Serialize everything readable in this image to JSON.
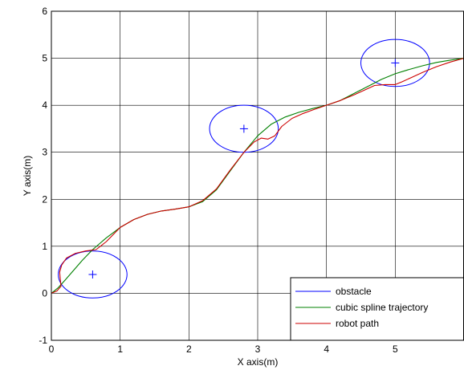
{
  "chart_data": {
    "type": "line",
    "title": "",
    "xlabel": "X axis(m)",
    "ylabel": "Y axis(m)",
    "xlim": [
      0,
      6
    ],
    "ylim": [
      -1,
      6
    ],
    "xticks": [
      0,
      1,
      2,
      3,
      4,
      5
    ],
    "yticks": [
      -1,
      0,
      1,
      2,
      3,
      4,
      5,
      6
    ],
    "grid": true,
    "legend_position": "bottom-right",
    "obstacles": [
      {
        "cx": 0.6,
        "cy": 0.4,
        "rx": 0.5,
        "ry": 0.5
      },
      {
        "cx": 2.8,
        "cy": 3.5,
        "rx": 0.5,
        "ry": 0.5
      },
      {
        "cx": 5.0,
        "cy": 4.9,
        "rx": 0.5,
        "ry": 0.5
      }
    ],
    "series": [
      {
        "name": "obstacle",
        "color": "#0000ff",
        "kind": "obstacle"
      },
      {
        "name": "cubic spline trajectory",
        "color": "#008000",
        "x": [
          0,
          0.1,
          0.2,
          0.3,
          0.45,
          0.6,
          0.8,
          1.0,
          1.2,
          1.4,
          1.6,
          1.8,
          2.0,
          2.2,
          2.4,
          2.6,
          2.8,
          3.0,
          3.2,
          3.4,
          3.6,
          3.8,
          4.0,
          4.2,
          4.4,
          4.6,
          4.8,
          5.0,
          5.2,
          5.4,
          5.6,
          5.8,
          6.0
        ],
        "y": [
          0,
          0.12,
          0.28,
          0.45,
          0.7,
          0.93,
          1.18,
          1.4,
          1.57,
          1.68,
          1.75,
          1.79,
          1.84,
          1.95,
          2.2,
          2.6,
          3.0,
          3.35,
          3.6,
          3.75,
          3.85,
          3.93,
          4.0,
          4.1,
          4.25,
          4.4,
          4.55,
          4.67,
          4.76,
          4.84,
          4.91,
          4.96,
          5.0
        ]
      },
      {
        "name": "robot path",
        "color": "#cc0000",
        "x": [
          0,
          0.08,
          0.14,
          0.13,
          0.12,
          0.15,
          0.22,
          0.35,
          0.5,
          0.65,
          0.8,
          1.0,
          1.2,
          1.4,
          1.6,
          1.8,
          2.0,
          2.2,
          2.4,
          2.6,
          2.8,
          2.95,
          3.05,
          3.15,
          3.25,
          3.35,
          3.5,
          3.65,
          3.8,
          4.0,
          4.2,
          4.4,
          4.55,
          4.7,
          4.85,
          5.0,
          5.1,
          5.25,
          5.4,
          5.6,
          5.8,
          6.0
        ],
        "y": [
          0,
          0.05,
          0.15,
          0.3,
          0.45,
          0.6,
          0.75,
          0.85,
          0.9,
          0.93,
          1.1,
          1.4,
          1.57,
          1.68,
          1.75,
          1.79,
          1.84,
          1.97,
          2.22,
          2.62,
          3.0,
          3.22,
          3.3,
          3.28,
          3.35,
          3.55,
          3.72,
          3.82,
          3.9,
          4.0,
          4.1,
          4.22,
          4.32,
          4.42,
          4.44,
          4.44,
          4.5,
          4.6,
          4.7,
          4.82,
          4.92,
          5.0
        ]
      }
    ]
  }
}
